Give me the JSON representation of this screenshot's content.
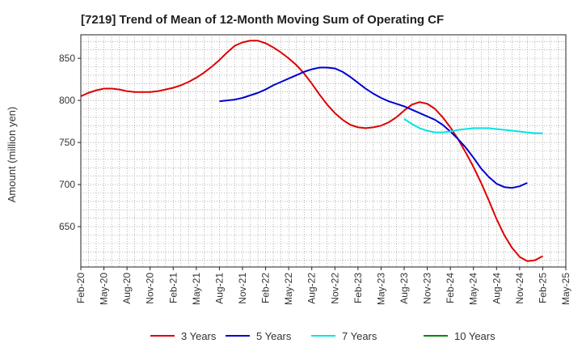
{
  "chart_data": {
    "type": "line",
    "title": "[7219]  Trend of Mean of 12-Month Moving Sum of Operating CF",
    "xlabel": "",
    "ylabel": "Amount (million yen)",
    "ylim": [
      602,
      878
    ],
    "yticks": [
      650,
      700,
      750,
      800,
      850
    ],
    "grid": true,
    "legend_position": "bottom",
    "x_tick_labels": [
      "Feb-20",
      "May-20",
      "Aug-20",
      "Nov-20",
      "Feb-21",
      "May-21",
      "Aug-21",
      "Nov-21",
      "Feb-22",
      "May-22",
      "Aug-22",
      "Nov-22",
      "Feb-23",
      "May-23",
      "Aug-23",
      "Nov-23",
      "Feb-24",
      "May-24",
      "Aug-24",
      "Nov-24",
      "Feb-25",
      "May-25"
    ],
    "x_start": "Feb-20",
    "x_unit": "months",
    "series": [
      {
        "name": "3 Years",
        "color": "#dd0000",
        "start_month": 0,
        "values": [
          805,
          809,
          812,
          814,
          814,
          813,
          811,
          810,
          810,
          810,
          811,
          813,
          815,
          818,
          822,
          827,
          833,
          840,
          848,
          857,
          865,
          869,
          871,
          871,
          868,
          863,
          857,
          850,
          842,
          832,
          820,
          807,
          795,
          785,
          777,
          771,
          768,
          767,
          768,
          770,
          774,
          780,
          788,
          795,
          798,
          796,
          790,
          780,
          768,
          754,
          738,
          721,
          702,
          681,
          659,
          640,
          625,
          614,
          609,
          610,
          615
        ]
      },
      {
        "name": "5 Years",
        "color": "#0000cc",
        "start_month": 18,
        "values": [
          799,
          800,
          801,
          803,
          806,
          809,
          813,
          818,
          822,
          826,
          830,
          834,
          837,
          839,
          839,
          838,
          834,
          828,
          821,
          814,
          808,
          803,
          799,
          796,
          793,
          789,
          785,
          781,
          777,
          771,
          763,
          754,
          744,
          732,
          719,
          709,
          701,
          697,
          696,
          698,
          702
        ]
      },
      {
        "name": "7 Years",
        "color": "#00e5e5",
        "start_month": 42,
        "values": [
          778,
          772,
          767,
          764,
          762,
          762,
          763,
          765,
          766,
          767,
          767,
          767,
          766,
          765,
          764,
          763,
          762,
          761,
          761
        ]
      },
      {
        "name": "10 Years",
        "color": "#008800",
        "start_month": 0,
        "values": []
      }
    ]
  }
}
